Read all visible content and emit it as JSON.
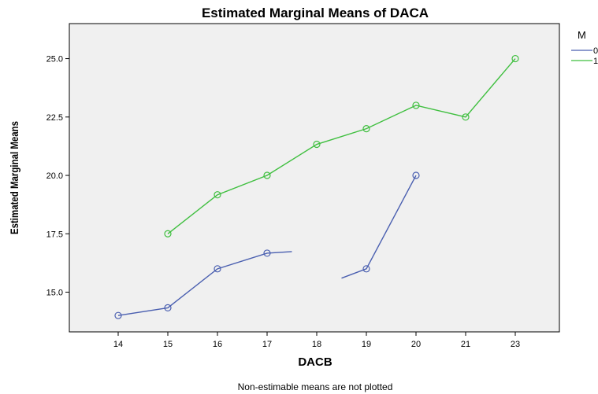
{
  "chart_data": {
    "type": "line",
    "title": "Estimated Marginal Means of DACA",
    "xlabel": "DACB",
    "ylabel": "Estimated Marginal Means",
    "categories": [
      "14",
      "15",
      "16",
      "17",
      "18",
      "19",
      "20",
      "21",
      "23"
    ],
    "yticks": [
      "15.0",
      "17.5",
      "20.0",
      "22.5",
      "25.0"
    ],
    "ylim": [
      13.3,
      26.5
    ],
    "grid": false,
    "legend_title": "M",
    "legend_position": "top-right",
    "note": "Non-estimable means are not plotted",
    "series": [
      {
        "name": "0",
        "color": "#4a5fb0",
        "values": [
          14.0,
          14.33,
          16.0,
          16.67,
          null,
          16.0,
          20.0,
          null,
          null
        ]
      },
      {
        "name": "1",
        "color": "#3fbf3f",
        "values": [
          null,
          17.5,
          19.17,
          20.0,
          21.33,
          22.0,
          23.0,
          22.5,
          25.0
        ]
      }
    ]
  }
}
